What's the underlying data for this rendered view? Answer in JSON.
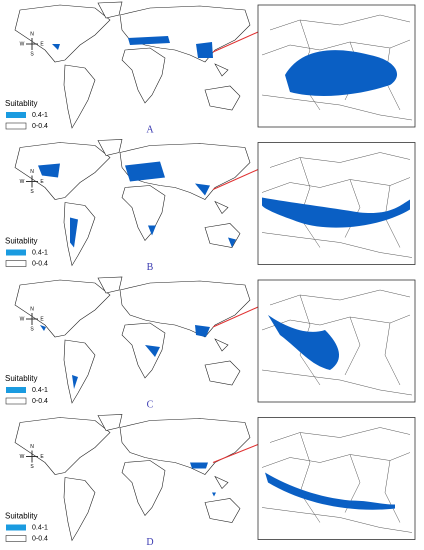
{
  "panels": [
    {
      "label": "A",
      "legend": {
        "title": "Suitablity",
        "items": [
          "0.4-1",
          "0-0.4"
        ]
      },
      "compass": [
        "N",
        "S",
        "W",
        "E"
      ]
    },
    {
      "label": "B",
      "legend": {
        "title": "Suitablity",
        "items": [
          "0.4-1",
          "0-0.4"
        ]
      },
      "compass": [
        "N",
        "S",
        "W",
        "E"
      ]
    },
    {
      "label": "C",
      "legend": {
        "title": "Suitablity",
        "items": [
          "0.4-1",
          "0-0.4"
        ]
      },
      "compass": [
        "N",
        "S",
        "W",
        "E"
      ]
    },
    {
      "label": "D",
      "legend": {
        "title": "Suitablity",
        "items": [
          "0.4-1",
          "0-0.4"
        ]
      },
      "compass": [
        "N",
        "S",
        "W",
        "E"
      ]
    }
  ]
}
